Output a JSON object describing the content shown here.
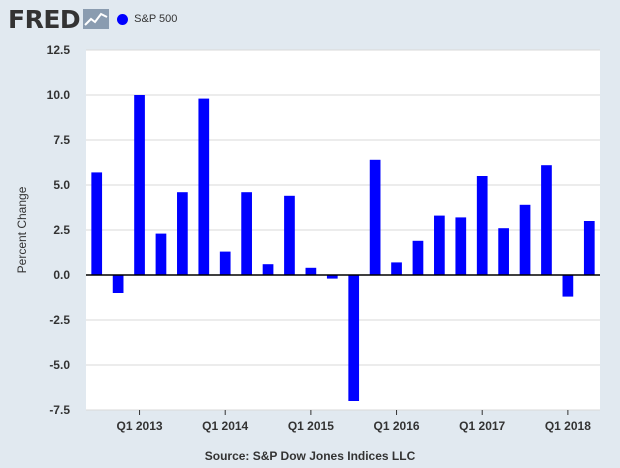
{
  "header": {
    "logo": "FRED",
    "logo_icon": "trend-line-icon",
    "series_label": "S&P 500"
  },
  "source_text": "Source: S&P Dow Jones Indices LLC",
  "chart_data": {
    "type": "bar",
    "title": "",
    "ylabel": "Percent Change",
    "xlabel": "",
    "ylim": [
      -7.5,
      12.5
    ],
    "yticks": [
      12.5,
      10.0,
      7.5,
      5.0,
      2.5,
      0.0,
      -2.5,
      -5.0,
      -7.5
    ],
    "ytick_labels": [
      "12.5",
      "10.0",
      "7.5",
      "5.0",
      "2.5",
      "0.0",
      "-2.5",
      "-5.0",
      "-7.5"
    ],
    "x_tick_labels": [
      "Q1 2013",
      "Q1 2014",
      "Q1 2015",
      "Q1 2016",
      "Q1 2017",
      "Q1 2018"
    ],
    "categories": [
      "Q3 2012",
      "Q4 2012",
      "Q1 2013",
      "Q2 2013",
      "Q3 2013",
      "Q4 2013",
      "Q1 2014",
      "Q2 2014",
      "Q3 2014",
      "Q4 2014",
      "Q1 2015",
      "Q2 2015",
      "Q3 2015",
      "Q4 2015",
      "Q1 2016",
      "Q2 2016",
      "Q3 2016",
      "Q4 2016",
      "Q1 2017",
      "Q2 2017",
      "Q3 2017",
      "Q4 2017",
      "Q1 2018",
      "Q2 2018"
    ],
    "series": [
      {
        "name": "S&P 500",
        "color": "#0000ff",
        "values": [
          5.7,
          -1.0,
          10.0,
          2.3,
          4.6,
          9.8,
          1.3,
          4.6,
          0.6,
          4.4,
          0.4,
          -0.2,
          -7.0,
          6.4,
          0.7,
          1.9,
          3.3,
          3.2,
          5.5,
          2.6,
          3.9,
          6.1,
          -1.2,
          3.0
        ]
      }
    ],
    "grid": "horizontal",
    "colors": {
      "plot_bg": "#ffffff",
      "page_bg": "#e1e9f0",
      "grid": "#d9d9d9",
      "zero_line": "#000000",
      "text": "#333333"
    }
  }
}
